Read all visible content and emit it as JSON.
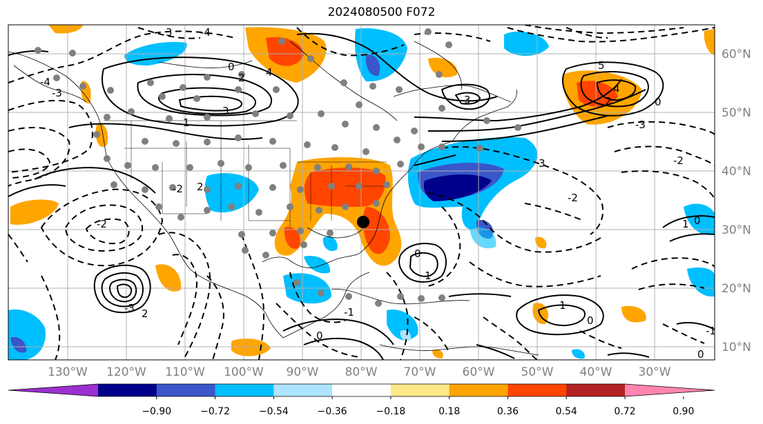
{
  "title": "2024080500 F072",
  "longitude_labels": [
    "130°W",
    "120°W",
    "110°W",
    "100°W",
    "90°W",
    "80°W",
    "70°W",
    "60°W",
    "50°W",
    "40°W",
    "30°W"
  ],
  "latitude_labels": [
    "60°N",
    "50°N",
    "40°N",
    "30°N",
    "20°N",
    "10°N"
  ],
  "colorbar": {
    "ticks": [
      "−0.90",
      "−0.72",
      "−0.54",
      "−0.36",
      "−0.18",
      "0.18",
      "0.36",
      "0.54",
      "0.72",
      "0.90"
    ],
    "colors": [
      "#9b30d0",
      "#00008b",
      "#3a56c8",
      "#00bfff",
      "#aee4ff",
      "#ffffff",
      "#fde98a",
      "#ffa500",
      "#ff4500",
      "#b22222",
      "#ff85b0"
    ]
  },
  "contour_labels": [
    {
      "text": "3"
    },
    {
      "text": "-4"
    },
    {
      "text": "0"
    },
    {
      "text": "2"
    },
    {
      "text": "1"
    },
    {
      "text": "3"
    },
    {
      "text": "4"
    },
    {
      "text": "5"
    },
    {
      "text": "4"
    },
    {
      "text": "2"
    },
    {
      "text": "-3"
    },
    {
      "text": "0"
    },
    {
      "text": "3"
    },
    {
      "text": "-2"
    },
    {
      "text": "-1"
    },
    {
      "text": "2"
    },
    {
      "text": "-2"
    },
    {
      "text": "-2"
    },
    {
      "text": "-3"
    },
    {
      "text": "2"
    },
    {
      "text": "1"
    },
    {
      "text": "0"
    },
    {
      "text": "1"
    },
    {
      "text": "0"
    },
    {
      "text": "0"
    },
    {
      "text": "1"
    },
    {
      "text": "-1"
    },
    {
      "text": "0"
    },
    {
      "text": "-3"
    },
    {
      "text": "3"
    },
    {
      "text": "-2"
    },
    {
      "text": "-4"
    },
    {
      "text": "0"
    }
  ],
  "marker": {
    "label": "storm-center"
  }
}
